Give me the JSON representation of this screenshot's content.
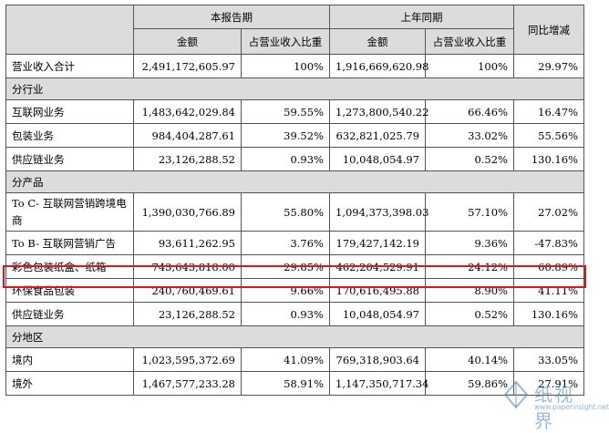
{
  "header": {
    "current_period": "本报告期",
    "prior_period": "上年同期",
    "yoy_change": "同比增减",
    "amount": "金额",
    "share_of_revenue": "占营业收入比重"
  },
  "rows": [
    {
      "kind": "data",
      "label": "营业收入合计",
      "cur_amount": "2,491,172,605.97",
      "cur_share": "100%",
      "prev_amount": "1,916,669,620.98",
      "prev_share": "100%",
      "yoy": "29.97%"
    },
    {
      "kind": "section",
      "label": "分行业"
    },
    {
      "kind": "data",
      "label": "互联网业务",
      "cur_amount": "1,483,642,029.84",
      "cur_share": "59.55%",
      "prev_amount": "1,273,800,540.22",
      "prev_share": "66.46%",
      "yoy": "16.47%"
    },
    {
      "kind": "data",
      "label": "包装业务",
      "cur_amount": "984,404,287.61",
      "cur_share": "39.52%",
      "prev_amount": "632,821,025.79",
      "prev_share": "33.02%",
      "yoy": "55.56%"
    },
    {
      "kind": "data",
      "label": "供应链业务",
      "cur_amount": "23,126,288.52",
      "cur_share": "0.93%",
      "prev_amount": "10,048,054.97",
      "prev_share": "0.52%",
      "yoy": "130.16%"
    },
    {
      "kind": "section",
      "label": "分产品"
    },
    {
      "kind": "data",
      "tall": true,
      "label": "To C- 互联网营销跨境电商",
      "cur_amount": "1,390,030,766.89",
      "cur_share": "55.80%",
      "prev_amount": "1,094,373,398.03",
      "prev_share": "57.10%",
      "yoy": "27.02%"
    },
    {
      "kind": "data",
      "label": "To B- 互联网营销广告",
      "cur_amount": "93,611,262.95",
      "cur_share": "3.76%",
      "prev_amount": "179,427,142.19",
      "prev_share": "9.36%",
      "yoy": "-47.83%"
    },
    {
      "kind": "data",
      "highlight": true,
      "label": "彩色包装纸盒、纸箱",
      "cur_amount": "743,643,818.00",
      "cur_share": "29.85%",
      "prev_amount": "462,204,529.91",
      "prev_share": "24.12%",
      "yoy": "60.89%"
    },
    {
      "kind": "data",
      "label": "环保食品包装",
      "cur_amount": "240,760,469.61",
      "cur_share": "9.66%",
      "prev_amount": "170,616,495.88",
      "prev_share": "8.90%",
      "yoy": "41.11%"
    },
    {
      "kind": "data",
      "label": "供应链业务",
      "cur_amount": "23,126,288.52",
      "cur_share": "0.93%",
      "prev_amount": "10,048,054.97",
      "prev_share": "0.52%",
      "yoy": "130.16%"
    },
    {
      "kind": "section",
      "label": "分地区"
    },
    {
      "kind": "data",
      "label": "境内",
      "cur_amount": "1,023,595,372.69",
      "cur_share": "41.09%",
      "prev_amount": "769,318,903.64",
      "prev_share": "40.14%",
      "yoy": "33.05%"
    },
    {
      "kind": "data",
      "label": "境外",
      "cur_amount": "1,467,577,233.28",
      "cur_share": "58.91%",
      "prev_amount": "1,147,350,717.34",
      "prev_share": "59.86%",
      "yoy": "27.91%"
    }
  ],
  "watermark": {
    "name": "纸视界",
    "url": "www.paperinsight.net",
    "icon": "paper-fold-icon",
    "color": "#4a7fb0"
  },
  "highlight_color": "#e0151c"
}
